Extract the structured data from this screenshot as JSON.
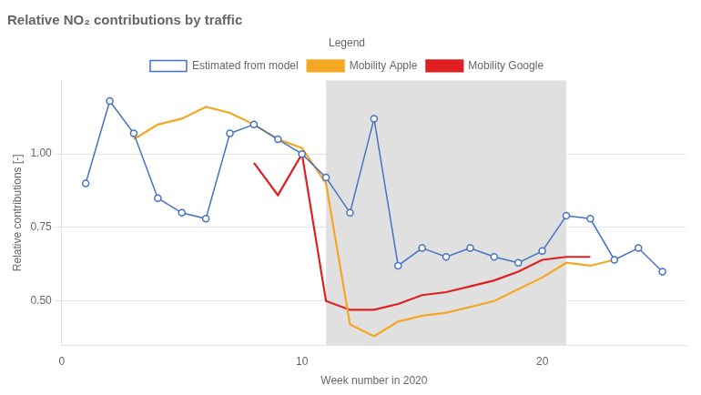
{
  "chart_data": {
    "type": "line",
    "title": "Relative NO₂ contributions by traffic",
    "xlabel": "Week number in 2020",
    "ylabel": "Relative contributions [-]",
    "legend": "top",
    "legend_title": "Legend",
    "grid": "y",
    "series": [
      {
        "name": "Estimated from model",
        "color": "#4472c4",
        "marker": "circle",
        "x": [
          1,
          2,
          3,
          4,
          5,
          6,
          7,
          8,
          9,
          10,
          11,
          12,
          13,
          14,
          15,
          16,
          17,
          18,
          19,
          20,
          21,
          22,
          23,
          24,
          25
        ],
        "values": [
          0.9,
          1.18,
          1.07,
          0.85,
          0.8,
          0.78,
          1.07,
          1.1,
          1.05,
          1.0,
          0.92,
          0.8,
          1.12,
          0.62,
          0.68,
          0.65,
          0.68,
          0.65,
          0.63,
          0.67,
          0.79,
          0.78,
          0.64,
          0.68,
          0.6
        ]
      },
      {
        "name": "Mobility Apple",
        "color": "#f5a623",
        "marker": "none",
        "x": [
          3,
          4,
          5,
          6,
          7,
          8,
          9,
          10,
          11,
          12,
          13,
          14,
          15,
          16,
          17,
          18,
          19,
          20,
          21,
          22,
          23
        ],
        "values": [
          1.05,
          1.1,
          1.12,
          1.16,
          1.14,
          1.1,
          1.05,
          1.02,
          0.9,
          0.42,
          0.38,
          0.43,
          0.45,
          0.46,
          0.48,
          0.5,
          0.54,
          0.58,
          0.63,
          0.62,
          0.64
        ]
      },
      {
        "name": "Mobility Google",
        "color": "#e02020",
        "marker": "none",
        "x": [
          8,
          9,
          10,
          11,
          12,
          13,
          14,
          15,
          16,
          17,
          18,
          19,
          20,
          21,
          22
        ],
        "values": [
          0.97,
          0.86,
          1.0,
          0.5,
          0.47,
          0.47,
          0.49,
          0.52,
          0.53,
          0.55,
          0.57,
          0.6,
          0.64,
          0.65,
          0.65
        ]
      }
    ],
    "shaded_region": {
      "x": [
        11,
        21
      ],
      "color": "#e0e0e0"
    },
    "xlim": [
      0,
      26
    ],
    "xticks": [
      0,
      10,
      20
    ],
    "ylim": [
      0.35,
      1.25
    ],
    "yticks": [
      {
        "value": 0.5,
        "label": "0.50"
      },
      {
        "value": 0.75,
        "label": "0.75"
      },
      {
        "value": 1.0,
        "label": "1.00"
      }
    ]
  }
}
